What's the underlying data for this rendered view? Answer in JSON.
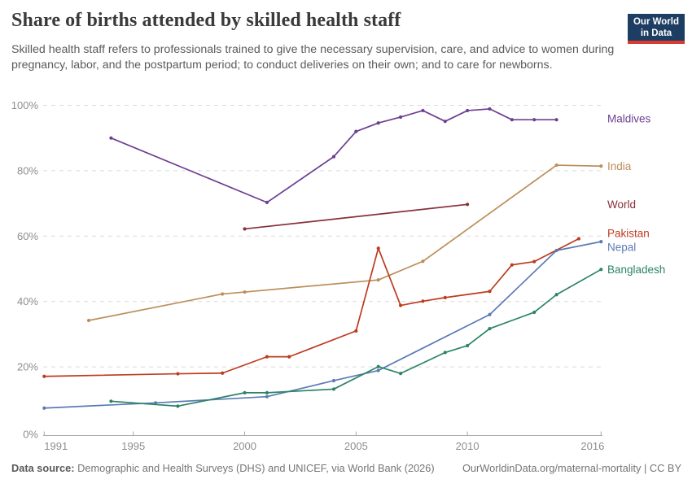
{
  "header": {
    "title": "Share of births attended by skilled health staff",
    "subtitle": "Skilled health staff refers to professionals trained to give the necessary supervision, care, and advice to women during pregnancy, labor, and the postpartum period; to conduct deliveries on their own; and to care for newborns.",
    "logo": {
      "line1": "Our World",
      "line2": "in Data",
      "bg_color": "#1d3d63",
      "accent_color": "#d93b32"
    }
  },
  "footer": {
    "source_label": "Data source:",
    "source_text": " Demographic and Health Surveys (DHS) and UNICEF, via World Bank (2026)",
    "right_text": "OurWorldinData.org/maternal-mortality | CC BY"
  },
  "chart_data": {
    "type": "line",
    "title": "Share of births attended by skilled health staff",
    "xlabel": "",
    "ylabel": "",
    "xlim": [
      1991,
      2016
    ],
    "ylim": [
      0,
      100
    ],
    "x_ticks": [
      1991,
      1995,
      2000,
      2005,
      2010,
      2016
    ],
    "y_ticks": [
      0,
      20,
      40,
      60,
      80,
      100
    ],
    "y_tick_suffix": "%",
    "grid": "horizontal-dashed",
    "legend_position": "right-end-labels",
    "grid_color": "#dadada",
    "axis_color": "#a9a9a9",
    "tick_label_color": "#8e8e8e",
    "series": [
      {
        "name": "Maldives",
        "color": "#6D3E91",
        "label_dy": -1,
        "points": [
          [
            1994,
            90
          ],
          [
            2001,
            70.3
          ],
          [
            2004,
            84.3
          ],
          [
            2005,
            92
          ],
          [
            2006,
            94.6
          ],
          [
            2007,
            96.4
          ],
          [
            2008,
            98.4
          ],
          [
            2009,
            95.1
          ],
          [
            2010,
            98.4
          ],
          [
            2011,
            98.9
          ],
          [
            2012,
            95.6
          ],
          [
            2013,
            95.6
          ],
          [
            2014,
            95.6
          ]
        ]
      },
      {
        "name": "India",
        "color": "#BC8E5A",
        "label_dy": 0,
        "points": [
          [
            1993,
            34.2
          ],
          [
            1999,
            42.3
          ],
          [
            2000,
            42.9
          ],
          [
            2006,
            46.6
          ],
          [
            2008,
            52.3
          ],
          [
            2014,
            81.7
          ],
          [
            2016,
            81.4
          ]
        ]
      },
      {
        "name": "World",
        "color": "#883039",
        "label_dy": 0,
        "points": [
          [
            2000,
            62.2
          ],
          [
            2010,
            69.7
          ]
        ]
      },
      {
        "name": "Pakistan",
        "color": "#BD3B1F",
        "label_dy": -6.5,
        "points": [
          [
            1991,
            17.1
          ],
          [
            1997,
            17.9
          ],
          [
            1999,
            18.1
          ],
          [
            2001,
            23.1
          ],
          [
            2002,
            23.1
          ],
          [
            2005,
            31
          ],
          [
            2006,
            56.3
          ],
          [
            2007,
            38.8
          ],
          [
            2008,
            40.1
          ],
          [
            2009,
            41.2
          ],
          [
            2011,
            43.1
          ],
          [
            2012,
            51.2
          ],
          [
            2013,
            52.2
          ],
          [
            2015,
            59.2
          ]
        ]
      },
      {
        "name": "Nepal",
        "color": "#5B7BB5",
        "label_dy": 7,
        "points": [
          [
            1991,
            7.4
          ],
          [
            1996,
            9
          ],
          [
            2001,
            10.9
          ],
          [
            2004,
            15.8
          ],
          [
            2006,
            18.9
          ],
          [
            2011,
            36
          ],
          [
            2014,
            55.6
          ],
          [
            2016,
            58.3
          ]
        ]
      },
      {
        "name": "Bangladesh",
        "color": "#2C8465",
        "label_dy": 0,
        "points": [
          [
            1994,
            9.5
          ],
          [
            1997,
            8
          ],
          [
            2000,
            12.1
          ],
          [
            2001,
            12.1
          ],
          [
            2004,
            13.2
          ],
          [
            2006,
            20.1
          ],
          [
            2007,
            18
          ],
          [
            2009,
            24.4
          ],
          [
            2010,
            26.5
          ],
          [
            2011,
            31.7
          ],
          [
            2013,
            36.7
          ],
          [
            2014,
            42.1
          ],
          [
            2016,
            49.8
          ]
        ]
      }
    ]
  }
}
